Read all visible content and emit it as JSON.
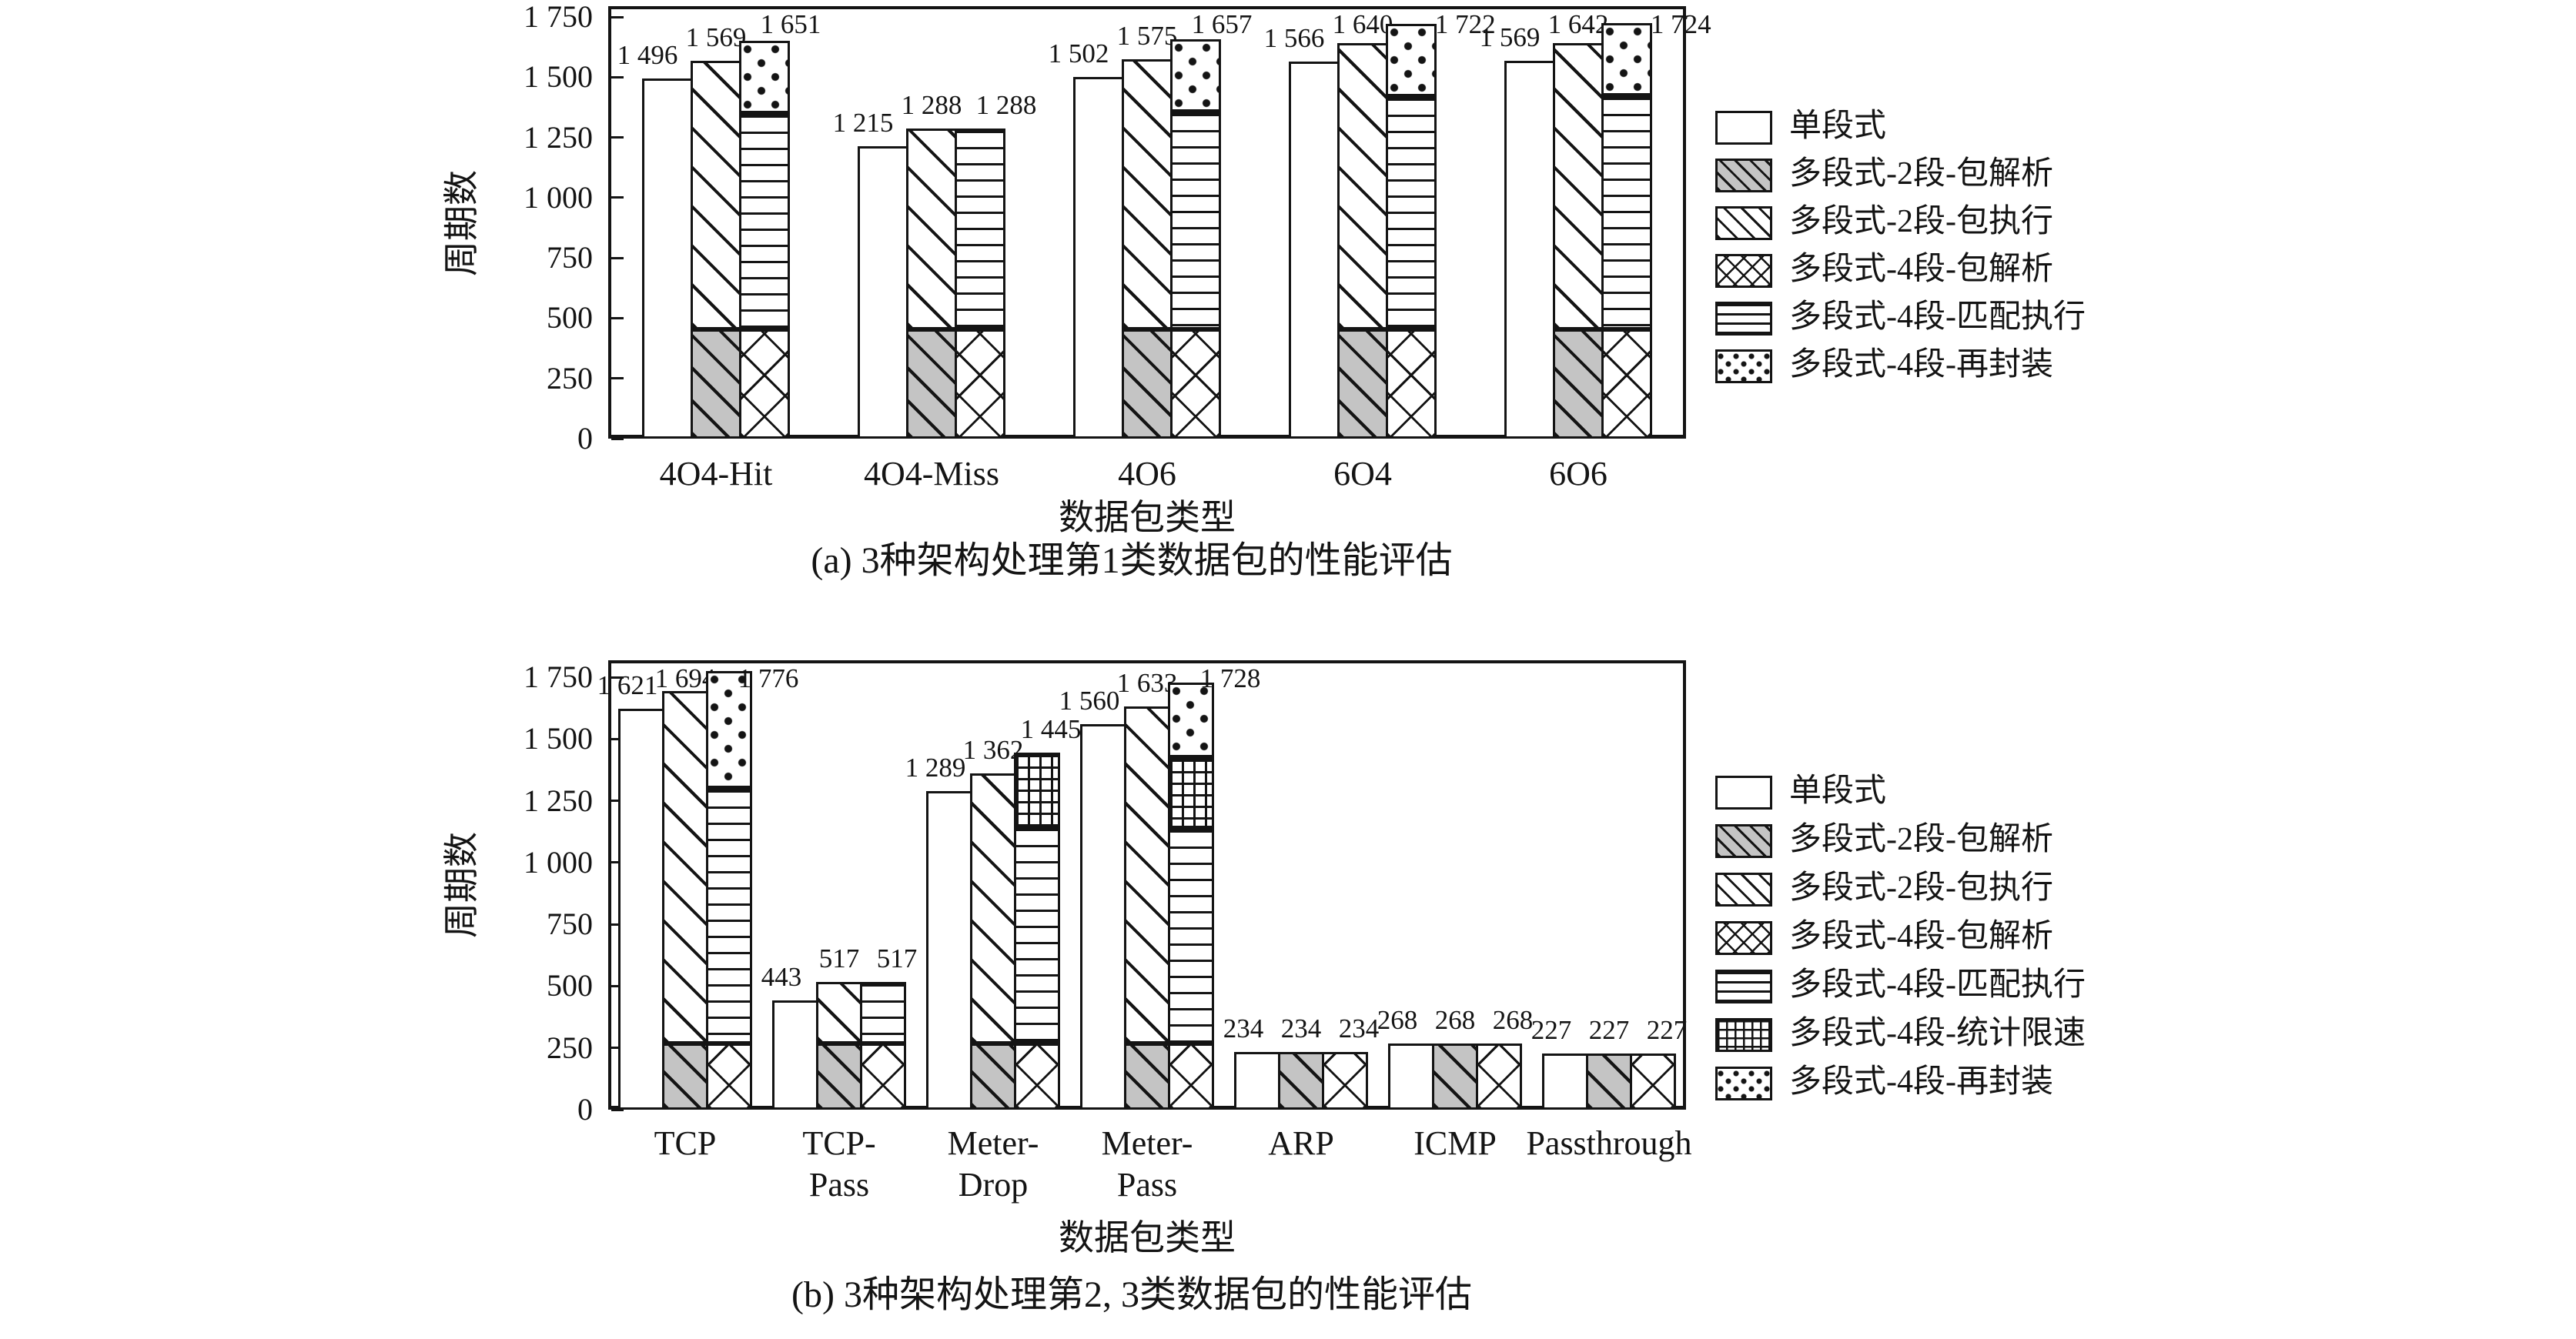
{
  "colors": {
    "ink": "#141414",
    "gray_fill": "#c4c4c4",
    "background": "#ffffff"
  },
  "chart_data": [
    {
      "id": "a",
      "type": "bar",
      "title": "(a) 3种架构处理第1类数据包的性能评估",
      "xlabel": "数据包类型",
      "ylabel": "周期数",
      "ylim": [
        0,
        1750
      ],
      "grid": false,
      "legend_position": "right",
      "yticks": [
        {
          "value": 0,
          "label": "0"
        },
        {
          "value": 250,
          "label": "250"
        },
        {
          "value": 500,
          "label": "500"
        },
        {
          "value": 750,
          "label": "750"
        },
        {
          "value": 1000,
          "label": "1 000"
        },
        {
          "value": 1250,
          "label": "1 250"
        },
        {
          "value": 1500,
          "label": "1 500"
        },
        {
          "value": 1750,
          "label": "1 750"
        }
      ],
      "legend": [
        {
          "label": "单段式",
          "pattern": "plain"
        },
        {
          "label": "多段式-2段-包解析",
          "pattern": "gray-diag"
        },
        {
          "label": "多段式-2段-包执行",
          "pattern": "diag"
        },
        {
          "label": "多段式-4段-包解析",
          "pattern": "cross"
        },
        {
          "label": "多段式-4段-匹配执行",
          "pattern": "hlines"
        },
        {
          "label": "多段式-4段-再封装",
          "pattern": "dots"
        }
      ],
      "categories": [
        [
          "4O4-Hit"
        ],
        [
          "4O4-Miss"
        ],
        [
          "4O6"
        ],
        [
          "6O4"
        ],
        [
          "6O6"
        ]
      ],
      "groups": [
        {
          "category": "4O4-Hit",
          "bars": [
            {
              "total": 1496,
              "label": "1 496",
              "segments": [
                {
                  "pattern": "plain",
                  "from": 0,
                  "to": 1496
                }
              ]
            },
            {
              "total": 1569,
              "label": "1 569",
              "segments": [
                {
                  "pattern": "gray-diag",
                  "from": 0,
                  "to": 455
                },
                {
                  "pattern": "diag",
                  "from": 455,
                  "to": 1569
                }
              ]
            },
            {
              "total": 1651,
              "label": "1 651",
              "segments": [
                {
                  "pattern": "cross",
                  "from": 0,
                  "to": 455
                },
                {
                  "pattern": "hlines",
                  "from": 455,
                  "to": 1350
                },
                {
                  "pattern": "dots",
                  "from": 1350,
                  "to": 1651
                }
              ]
            }
          ]
        },
        {
          "category": "4O4-Miss",
          "bars": [
            {
              "total": 1215,
              "label": "1 215",
              "segments": [
                {
                  "pattern": "plain",
                  "from": 0,
                  "to": 1215
                }
              ]
            },
            {
              "total": 1288,
              "label": "1 288",
              "segments": [
                {
                  "pattern": "gray-diag",
                  "from": 0,
                  "to": 455
                },
                {
                  "pattern": "diag",
                  "from": 455,
                  "to": 1288
                }
              ]
            },
            {
              "total": 1288,
              "label": "1 288",
              "segments": [
                {
                  "pattern": "cross",
                  "from": 0,
                  "to": 455
                },
                {
                  "pattern": "hlines",
                  "from": 455,
                  "to": 1288
                }
              ]
            }
          ]
        },
        {
          "category": "4O6",
          "bars": [
            {
              "total": 1502,
              "label": "1 502",
              "segments": [
                {
                  "pattern": "plain",
                  "from": 0,
                  "to": 1502
                }
              ]
            },
            {
              "total": 1575,
              "label": "1 575",
              "segments": [
                {
                  "pattern": "gray-diag",
                  "from": 0,
                  "to": 455
                },
                {
                  "pattern": "diag",
                  "from": 455,
                  "to": 1575
                }
              ]
            },
            {
              "total": 1657,
              "label": "1 657",
              "segments": [
                {
                  "pattern": "cross",
                  "from": 0,
                  "to": 455
                },
                {
                  "pattern": "hlines",
                  "from": 455,
                  "to": 1356
                },
                {
                  "pattern": "dots",
                  "from": 1356,
                  "to": 1657
                }
              ]
            }
          ]
        },
        {
          "category": "6O4",
          "bars": [
            {
              "total": 1566,
              "label": "1 566",
              "segments": [
                {
                  "pattern": "plain",
                  "from": 0,
                  "to": 1566
                }
              ]
            },
            {
              "total": 1640,
              "label": "1 640",
              "segments": [
                {
                  "pattern": "gray-diag",
                  "from": 0,
                  "to": 455
                },
                {
                  "pattern": "diag",
                  "from": 455,
                  "to": 1640
                }
              ]
            },
            {
              "total": 1722,
              "label": "1 722",
              "segments": [
                {
                  "pattern": "cross",
                  "from": 0,
                  "to": 455
                },
                {
                  "pattern": "hlines",
                  "from": 455,
                  "to": 1421
                },
                {
                  "pattern": "dots",
                  "from": 1421,
                  "to": 1722
                }
              ]
            }
          ]
        },
        {
          "category": "6O6",
          "bars": [
            {
              "total": 1569,
              "label": "1 569",
              "segments": [
                {
                  "pattern": "plain",
                  "from": 0,
                  "to": 1569
                }
              ]
            },
            {
              "total": 1642,
              "label": "1 642",
              "segments": [
                {
                  "pattern": "gray-diag",
                  "from": 0,
                  "to": 455
                },
                {
                  "pattern": "diag",
                  "from": 455,
                  "to": 1642
                }
              ]
            },
            {
              "total": 1724,
              "label": "1 724",
              "segments": [
                {
                  "pattern": "cross",
                  "from": 0,
                  "to": 455
                },
                {
                  "pattern": "hlines",
                  "from": 455,
                  "to": 1423
                },
                {
                  "pattern": "dots",
                  "from": 1423,
                  "to": 1724
                }
              ]
            }
          ]
        }
      ]
    },
    {
      "id": "b",
      "type": "bar",
      "title": "(b) 3种架构处理第2, 3类数据包的性能评估",
      "xlabel": "数据包类型",
      "ylabel": "周期数",
      "ylim": [
        0,
        1750
      ],
      "grid": false,
      "legend_position": "right",
      "yticks": [
        {
          "value": 0,
          "label": "0"
        },
        {
          "value": 250,
          "label": "250"
        },
        {
          "value": 500,
          "label": "500"
        },
        {
          "value": 750,
          "label": "750"
        },
        {
          "value": 1000,
          "label": "1 000"
        },
        {
          "value": 1250,
          "label": "1 250"
        },
        {
          "value": 1500,
          "label": "1 500"
        },
        {
          "value": 1750,
          "label": "1 750"
        }
      ],
      "legend": [
        {
          "label": "单段式",
          "pattern": "plain"
        },
        {
          "label": "多段式-2段-包解析",
          "pattern": "gray-diag"
        },
        {
          "label": "多段式-2段-包执行",
          "pattern": "diag"
        },
        {
          "label": "多段式-4段-包解析",
          "pattern": "cross"
        },
        {
          "label": "多段式-4段-匹配执行",
          "pattern": "hlines"
        },
        {
          "label": "多段式-4段-统计限速",
          "pattern": "grid"
        },
        {
          "label": "多段式-4段-再封装",
          "pattern": "dots"
        }
      ],
      "categories": [
        [
          "TCP"
        ],
        [
          "TCP-",
          "Pass"
        ],
        [
          "Meter-",
          "Drop"
        ],
        [
          "Meter-",
          "Pass"
        ],
        [
          "ARP"
        ],
        [
          "ICMP"
        ],
        [
          "Passthrough"
        ]
      ],
      "groups": [
        {
          "category": "TCP",
          "bars": [
            {
              "total": 1621,
              "label": "1 621",
              "segments": [
                {
                  "pattern": "plain",
                  "from": 0,
                  "to": 1621
                }
              ]
            },
            {
              "total": 1694,
              "label": "1 694",
              "segments": [
                {
                  "pattern": "gray-diag",
                  "from": 0,
                  "to": 268
                },
                {
                  "pattern": "diag",
                  "from": 268,
                  "to": 1694
                }
              ]
            },
            {
              "total": 1776,
              "label": "1 776",
              "segments": [
                {
                  "pattern": "cross",
                  "from": 0,
                  "to": 268
                },
                {
                  "pattern": "hlines",
                  "from": 268,
                  "to": 1302
                },
                {
                  "pattern": "dots",
                  "from": 1302,
                  "to": 1776
                }
              ]
            }
          ]
        },
        {
          "category": "TCP-Pass",
          "bars": [
            {
              "total": 443,
              "label": "443",
              "segments": [
                {
                  "pattern": "plain",
                  "from": 0,
                  "to": 443
                }
              ]
            },
            {
              "total": 517,
              "label": "517",
              "segments": [
                {
                  "pattern": "gray-diag",
                  "from": 0,
                  "to": 268
                },
                {
                  "pattern": "diag",
                  "from": 268,
                  "to": 517
                }
              ]
            },
            {
              "total": 517,
              "label": "517",
              "segments": [
                {
                  "pattern": "cross",
                  "from": 0,
                  "to": 268
                },
                {
                  "pattern": "hlines",
                  "from": 268,
                  "to": 517
                }
              ]
            }
          ]
        },
        {
          "category": "Meter-Drop",
          "bars": [
            {
              "total": 1289,
              "label": "1 289",
              "segments": [
                {
                  "pattern": "plain",
                  "from": 0,
                  "to": 1289
                }
              ]
            },
            {
              "total": 1362,
              "label": "1 362",
              "segments": [
                {
                  "pattern": "gray-diag",
                  "from": 0,
                  "to": 268
                },
                {
                  "pattern": "diag",
                  "from": 268,
                  "to": 1362
                }
              ]
            },
            {
              "total": 1445,
              "label": "1 445",
              "segments": [
                {
                  "pattern": "cross",
                  "from": 0,
                  "to": 268
                },
                {
                  "pattern": "hlines",
                  "from": 268,
                  "to": 1145
                },
                {
                  "pattern": "grid",
                  "from": 1145,
                  "to": 1445
                }
              ]
            }
          ]
        },
        {
          "category": "Meter-Pass",
          "bars": [
            {
              "total": 1560,
              "label": "1 560",
              "segments": [
                {
                  "pattern": "plain",
                  "from": 0,
                  "to": 1560
                }
              ]
            },
            {
              "total": 1633,
              "label": "1 633",
              "segments": [
                {
                  "pattern": "gray-diag",
                  "from": 0,
                  "to": 268
                },
                {
                  "pattern": "diag",
                  "from": 268,
                  "to": 1633
                }
              ]
            },
            {
              "total": 1728,
              "label": "1 728",
              "segments": [
                {
                  "pattern": "cross",
                  "from": 0,
                  "to": 268
                },
                {
                  "pattern": "hlines",
                  "from": 268,
                  "to": 1140
                },
                {
                  "pattern": "grid",
                  "from": 1140,
                  "to": 1425
                },
                {
                  "pattern": "dots",
                  "from": 1425,
                  "to": 1728
                }
              ]
            }
          ]
        },
        {
          "category": "ARP",
          "bars": [
            {
              "total": 234,
              "label": "234",
              "segments": [
                {
                  "pattern": "plain",
                  "from": 0,
                  "to": 234
                }
              ]
            },
            {
              "total": 234,
              "label": "234",
              "segments": [
                {
                  "pattern": "gray-diag",
                  "from": 0,
                  "to": 234
                }
              ]
            },
            {
              "total": 234,
              "label": "234",
              "segments": [
                {
                  "pattern": "cross",
                  "from": 0,
                  "to": 234
                }
              ]
            }
          ]
        },
        {
          "category": "ICMP",
          "bars": [
            {
              "total": 268,
              "label": "268",
              "segments": [
                {
                  "pattern": "plain",
                  "from": 0,
                  "to": 268
                }
              ]
            },
            {
              "total": 268,
              "label": "268",
              "segments": [
                {
                  "pattern": "gray-diag",
                  "from": 0,
                  "to": 268
                }
              ]
            },
            {
              "total": 268,
              "label": "268",
              "segments": [
                {
                  "pattern": "cross",
                  "from": 0,
                  "to": 268
                }
              ]
            }
          ]
        },
        {
          "category": "Passthrough",
          "bars": [
            {
              "total": 227,
              "label": "227",
              "segments": [
                {
                  "pattern": "plain",
                  "from": 0,
                  "to": 227
                }
              ]
            },
            {
              "total": 227,
              "label": "227",
              "segments": [
                {
                  "pattern": "gray-diag",
                  "from": 0,
                  "to": 227
                }
              ]
            },
            {
              "total": 227,
              "label": "227",
              "segments": [
                {
                  "pattern": "cross",
                  "from": 0,
                  "to": 227
                }
              ]
            }
          ]
        }
      ]
    }
  ]
}
